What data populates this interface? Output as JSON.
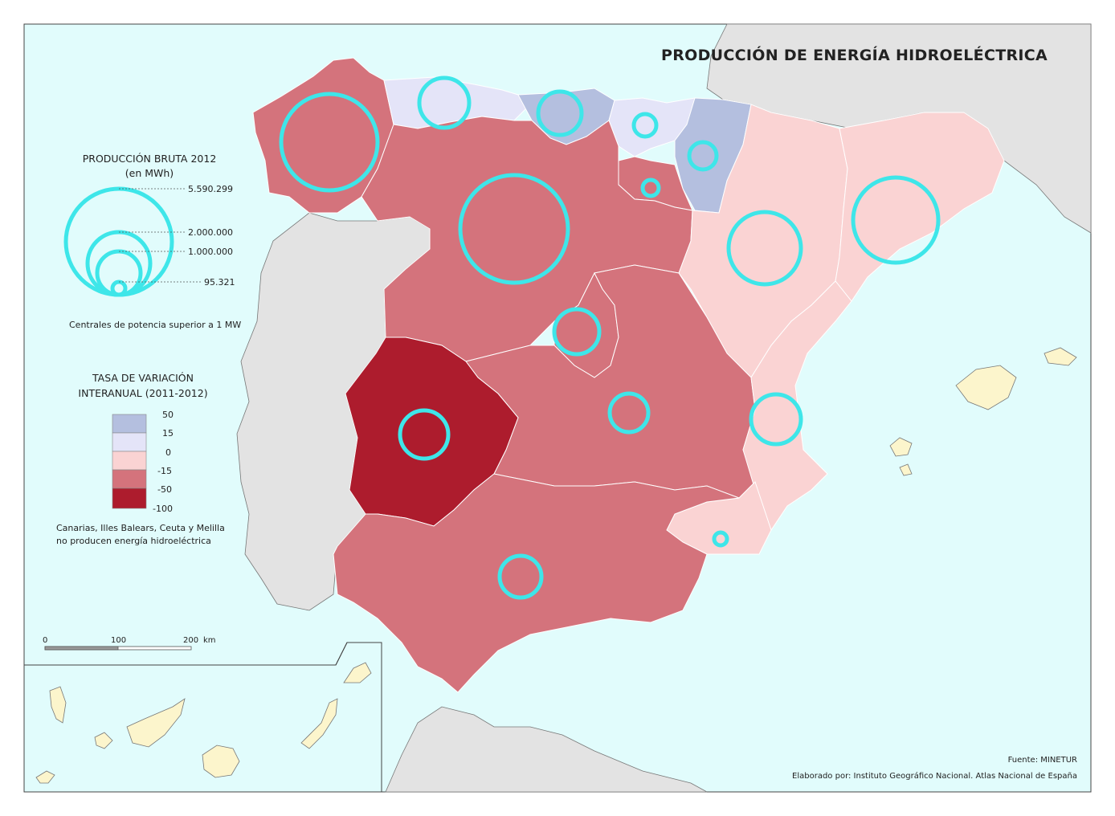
{
  "title": "PRODUCCIÓN DE ENERGÍA HIDROELÉCTRICA",
  "circle_legend": {
    "title": "PRODUCCIÓN BRUTA 2012",
    "unit": "(en MWh)",
    "values": [
      "5.590.299",
      "2.000.000",
      "1.000.000",
      "95.321"
    ],
    "note": "Centrales de potencia superior a 1 MW"
  },
  "choropleth_legend": {
    "title_line1": "TASA DE VARIACIÓN",
    "title_line2": "INTERANUAL (2011-2012)",
    "breaks": [
      "50",
      "15",
      "0",
      "-15",
      "-50",
      "-100"
    ],
    "colors": [
      "#b4bfdf",
      "#e4e4f8",
      "#fad3d3",
      "#d4737c",
      "#ad1c2d"
    ],
    "note_line1": "Canarias, Illes Balears, Ceuta y Melilla",
    "note_line2": "no producen energía hidroeléctrica"
  },
  "scale_bar": {
    "labels": [
      "0",
      "100",
      "200"
    ],
    "unit": "km"
  },
  "source": "Fuente: MINETUR",
  "credit": "Elaborado por: Instituto Geográfico Nacional. Atlas Nacional de España",
  "colors": {
    "sea": "#e1fcfc",
    "foreign_land": "#e3e3e3",
    "islands": "#fcf5cc",
    "circle_stroke": "#3ee6e9"
  }
}
